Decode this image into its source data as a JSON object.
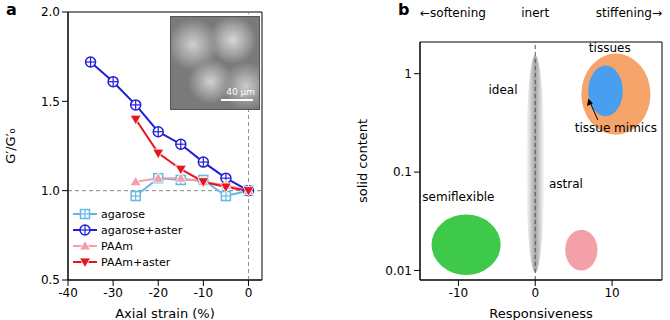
{
  "chart_data": [
    {
      "type": "line",
      "title": "a",
      "x_label": "Axial strain (%)",
      "y_label": "G′/G′₀",
      "xlim": [
        -40,
        3
      ],
      "xticks": [
        -40,
        -30,
        -20,
        -10,
        0
      ],
      "ylim": [
        0.5,
        2
      ],
      "yticks": [
        0.5,
        {
          "value": 1,
          "label": "1.0"
        },
        1.5,
        {
          "value": 2,
          "label": "2.0"
        }
      ],
      "legend": "lower left",
      "reference_lines": [
        {
          "axis": "y",
          "value": 1
        },
        {
          "axis": "x",
          "value": 0
        }
      ],
      "inset": {
        "scale_bar": "40 μm"
      },
      "x": [
        -35,
        -30,
        -25,
        -20,
        -15,
        -10,
        -5,
        0
      ],
      "series": [
        {
          "name": "agarose",
          "color": "#62b8e6",
          "marker": "square",
          "values": [
            null,
            null,
            0.97,
            1.07,
            1.06,
            1.06,
            0.97,
            1.0
          ]
        },
        {
          "name": "agarose+aster",
          "color": "#1f1fd6",
          "marker": "circle",
          "values": [
            1.72,
            1.61,
            1.48,
            1.33,
            1.26,
            1.16,
            1.07,
            1.0
          ]
        },
        {
          "name": "PAAm",
          "color": "#f0a0a8",
          "marker": "triangle-up",
          "values": [
            null,
            null,
            1.05,
            1.07,
            1.07,
            1.05,
            1.03,
            1.0
          ]
        },
        {
          "name": "PAAm+aster",
          "color": "#e8141e",
          "marker": "triangle-down",
          "values": [
            null,
            null,
            1.4,
            1.21,
            1.12,
            1.05,
            1.02,
            1.0
          ]
        }
      ]
    },
    {
      "type": "region",
      "title": "b",
      "x_label": "Responsiveness",
      "y_label": "solid content",
      "log": "y",
      "xlim": [
        -15,
        16.5
      ],
      "xticks": [
        -10,
        0,
        10
      ],
      "ylim": [
        0.008,
        2.1
      ],
      "yticks": [
        0.01,
        0.1,
        1
      ],
      "direction_labels": {
        "left": "←softening",
        "center": "inert",
        "right": "stiffening→"
      },
      "reference_lines": [
        {
          "axis": "x",
          "value": 0
        }
      ],
      "regions": [
        {
          "name": "tissues",
          "color": "#f7a46b",
          "x_range": [
            6,
            15
          ],
          "y_range": [
            0.24,
            1.6
          ],
          "label_at": [
            9.7,
            1.8
          ]
        },
        {
          "name": "tissue mimics",
          "color": "#4a9ef0",
          "x_range": [
            6.9,
            11.4
          ],
          "y_range": [
            0.37,
            1.21
          ],
          "label_at": [
            10.5,
            0.28
          ],
          "line_style": "arrow"
        },
        {
          "name": "ideal",
          "color": "#9a9a9a",
          "x_range": [
            -1.2,
            1.2
          ],
          "y_range": [
            0.0095,
            1.54
          ],
          "label_at": [
            -4.2,
            0.68
          ]
        },
        {
          "name": "semiflexible",
          "color": "#3ec94a",
          "x_range": [
            -13.5,
            -4.5
          ],
          "y_range": [
            0.009,
            0.037
          ],
          "label_at": [
            -10,
            0.055
          ]
        },
        {
          "name": "astral",
          "color": "#f4a0a8",
          "x_range": [
            3.9,
            8.1
          ],
          "y_range": [
            0.01,
            0.026
          ],
          "label_at": [
            4,
            0.075
          ]
        }
      ]
    }
  ]
}
